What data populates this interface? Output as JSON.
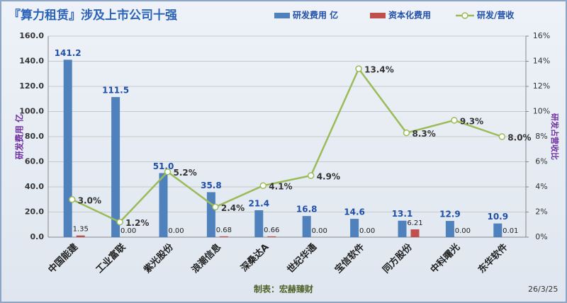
{
  "chart_data": {
    "type": "bar-line",
    "title": "『算力租赁』涉及上市公司十强",
    "categories": [
      "中国能建",
      "工业富联",
      "紫光股份",
      "浪潮信息",
      "深桑达A",
      "世纪华通",
      "宝信软件",
      "同方股份",
      "中科曙光",
      "东华软件"
    ],
    "series": [
      {
        "name": "研发费用 亿",
        "color": "#4f81bd",
        "type": "bar",
        "values": [
          141.2,
          111.5,
          51.0,
          35.8,
          21.4,
          16.8,
          14.6,
          13.1,
          12.9,
          10.9
        ],
        "value_labels": [
          "141.2",
          "111.5",
          "51.0",
          "35.8",
          "21.4",
          "16.8",
          "14.6",
          "13.1",
          "12.9",
          "10.9"
        ]
      },
      {
        "name": "资本化费用",
        "color": "#c0504d",
        "type": "bar",
        "values": [
          1.35,
          0.0,
          0.0,
          0.68,
          0.66,
          0.0,
          0.0,
          6.21,
          0.0,
          0.01
        ],
        "value_labels": [
          "1.35",
          "0.00",
          "0.00",
          "0.68",
          "0.66",
          "0.00",
          "0.00",
          "6.21",
          "0.00",
          "0.01"
        ]
      },
      {
        "name": "研发/营收",
        "color": "#9bbb59",
        "type": "line",
        "axis": "y2",
        "values": [
          3.0,
          1.2,
          5.2,
          2.4,
          4.1,
          4.9,
          13.4,
          8.3,
          9.3,
          8.0
        ],
        "value_labels": [
          "3.0%",
          "1.2%",
          "5.2%",
          "2.4%",
          "4.1%",
          "4.9%",
          "13.4%",
          "8.3%",
          "9.3%",
          "8.0%"
        ]
      }
    ],
    "ylabel": "研发费用 亿",
    "y2label": "研发占营收比",
    "ylim": [
      0,
      160
    ],
    "yticks": [
      {
        "value": 0,
        "label": "0.0"
      },
      {
        "value": 20,
        "label": "20.0"
      },
      {
        "value": 40,
        "label": "40.0"
      },
      {
        "value": 60,
        "label": "60.0"
      },
      {
        "value": 80,
        "label": "80.0"
      },
      {
        "value": 100,
        "label": "100.0"
      },
      {
        "value": 120,
        "label": "120.0"
      },
      {
        "value": 140,
        "label": "140.0"
      },
      {
        "value": 160,
        "label": "160.0"
      }
    ],
    "y2lim": [
      0,
      16
    ],
    "y2ticks": [
      {
        "value": 0,
        "label": "0%"
      },
      {
        "value": 2,
        "label": "2%"
      },
      {
        "value": 4,
        "label": "4%"
      },
      {
        "value": 6,
        "label": "6%"
      },
      {
        "value": 8,
        "label": "8%"
      },
      {
        "value": 10,
        "label": "10%"
      },
      {
        "value": 12,
        "label": "12%"
      },
      {
        "value": 14,
        "label": "14%"
      },
      {
        "value": 16,
        "label": "16%"
      }
    ],
    "grid": true,
    "annotations": [
      "制表：宏赫臻财",
      "26/3/25"
    ]
  }
}
